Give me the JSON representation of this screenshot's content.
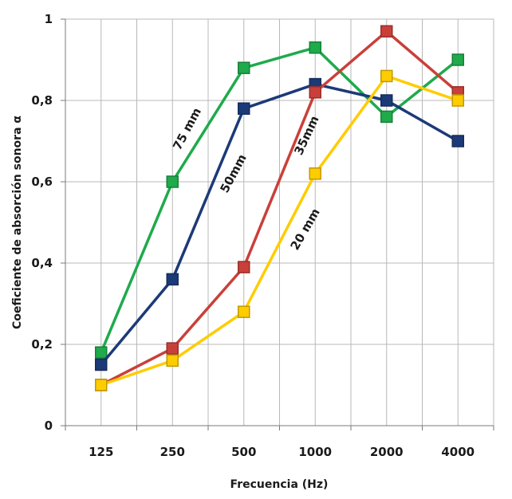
{
  "chart_data": {
    "type": "line",
    "xlabel": "Frecuencia (Hz)",
    "ylabel": "Coeficiente de absorción  sonora α",
    "categories": [
      "125",
      "250",
      "500",
      "1000",
      "2000",
      "4000"
    ],
    "ylim": [
      0,
      1
    ],
    "y_ticks": [
      0,
      0.2,
      0.4,
      0.6,
      0.8,
      1
    ],
    "y_tick_labels": [
      "0",
      "0,2",
      "0,4",
      "0,6",
      "0,8",
      "1"
    ],
    "grid": true,
    "series": [
      {
        "name": "75 mm",
        "color": "#1faa4c",
        "values": [
          0.18,
          0.6,
          0.88,
          0.93,
          0.76,
          0.9
        ]
      },
      {
        "name": "50mm",
        "color": "#1c3a78",
        "values": [
          0.15,
          0.36,
          0.78,
          0.84,
          0.8,
          0.7
        ]
      },
      {
        "name": "35mm",
        "color": "#c9403a",
        "values": [
          0.1,
          0.19,
          0.39,
          0.82,
          0.97,
          0.82
        ]
      },
      {
        "name": "20 mm",
        "color": "#ffcc00",
        "values": [
          0.1,
          0.16,
          0.28,
          0.62,
          0.86,
          0.8
        ]
      }
    ]
  }
}
